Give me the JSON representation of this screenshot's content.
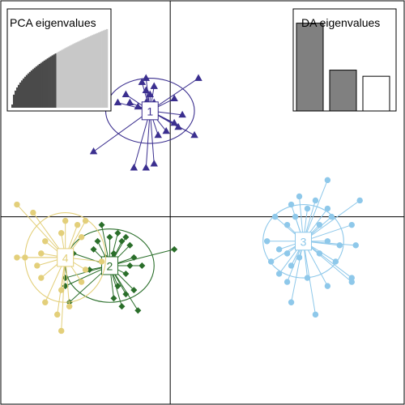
{
  "chart_data": {
    "type": "scatter",
    "plot_kind": "DAPC scatterplot",
    "axes": {
      "x_range": [
        -4.2,
        5.8
      ],
      "y_range": [
        -4.6,
        5.3
      ],
      "origin_lines": true,
      "grid": false
    },
    "groups": [
      {
        "label": "1",
        "color": "#3b2f8f",
        "marker": "triangle",
        "centroid": [
          -0.5,
          2.6
        ],
        "ellipse": {
          "rx": 1.1,
          "ry": 0.8
        },
        "points": [
          [
            -0.6,
            3.4
          ],
          [
            -1.1,
            3.0
          ],
          [
            -0.7,
            3.3
          ],
          [
            -0.6,
            3.1
          ],
          [
            -0.5,
            3.0
          ],
          [
            -0.4,
            3.2
          ],
          [
            -1.3,
            2.8
          ],
          [
            -1.0,
            2.8
          ],
          [
            -0.8,
            2.7
          ],
          [
            -0.6,
            2.8
          ],
          [
            -0.4,
            2.8
          ],
          [
            0.1,
            2.9
          ],
          [
            0.7,
            3.4
          ],
          [
            0.3,
            2.5
          ],
          [
            0.1,
            2.3
          ],
          [
            0.2,
            2.2
          ],
          [
            0.6,
            2.0
          ],
          [
            -0.1,
            2.1
          ],
          [
            -0.3,
            2.0
          ],
          [
            -1.9,
            1.6
          ],
          [
            -0.9,
            1.2
          ],
          [
            -0.6,
            1.2
          ],
          [
            -0.4,
            1.3
          ]
        ]
      },
      {
        "label": "2",
        "color": "#2a6e2a",
        "marker": "diamond",
        "centroid": [
          -1.5,
          -1.2
        ],
        "ellipse": {
          "rx": 1.1,
          "ry": 0.9
        },
        "points": [
          [
            -1.7,
            -0.2
          ],
          [
            -1.3,
            -0.4
          ],
          [
            -1.1,
            -0.5
          ],
          [
            -1.2,
            -0.6
          ],
          [
            -1.0,
            -0.7
          ],
          [
            -1.5,
            -0.5
          ],
          [
            -1.8,
            -0.6
          ],
          [
            -1.9,
            -0.8
          ],
          [
            -1.4,
            -0.9
          ],
          [
            -1.6,
            -1.0
          ],
          [
            -2.4,
            -0.9
          ],
          [
            0.1,
            -0.8
          ],
          [
            -0.9,
            -1.0
          ],
          [
            -1.0,
            -1.2
          ],
          [
            -1.1,
            -1.4
          ],
          [
            -0.7,
            -1.2
          ],
          [
            -1.3,
            -1.7
          ],
          [
            -2.0,
            -1.3
          ],
          [
            -2.6,
            -1.5
          ],
          [
            -2.6,
            -1.7
          ],
          [
            -0.9,
            -1.8
          ],
          [
            -1.1,
            -1.9
          ],
          [
            -1.4,
            -2.0
          ],
          [
            -2.5,
            -2.1
          ],
          [
            -1.2,
            -2.2
          ],
          [
            -0.8,
            -2.3
          ]
        ]
      },
      {
        "label": "3",
        "color": "#8ec8ea",
        "marker": "circle",
        "centroid": [
          3.3,
          -0.6
        ],
        "ellipse": {
          "rx": 1.0,
          "ry": 0.9
        },
        "points": [
          [
            3.9,
            0.9
          ],
          [
            4.7,
            0.4
          ],
          [
            3.0,
            0.3
          ],
          [
            3.1,
            0.0
          ],
          [
            2.6,
            0.0
          ],
          [
            3.4,
            0.2
          ],
          [
            3.6,
            0.4
          ],
          [
            3.2,
            0.5
          ],
          [
            3.9,
            0.2
          ],
          [
            4.0,
            0.0
          ],
          [
            3.7,
            -0.2
          ],
          [
            2.9,
            -0.2
          ],
          [
            2.4,
            -0.6
          ],
          [
            4.5,
            -0.2
          ],
          [
            3.9,
            -0.6
          ],
          [
            4.2,
            -0.7
          ],
          [
            2.7,
            -0.8
          ],
          [
            4.6,
            -0.7
          ],
          [
            2.9,
            -0.9
          ],
          [
            3.7,
            -0.9
          ],
          [
            2.5,
            -1.1
          ],
          [
            3.0,
            -1.2
          ],
          [
            3.2,
            -1.0
          ],
          [
            4.1,
            -1.1
          ],
          [
            2.7,
            -1.4
          ],
          [
            2.9,
            -1.6
          ],
          [
            4.5,
            -1.5
          ],
          [
            4.5,
            -1.6
          ],
          [
            3.4,
            -1.5
          ],
          [
            3.9,
            -1.7
          ],
          [
            3.0,
            -2.1
          ],
          [
            3.6,
            -2.4
          ]
        ]
      },
      {
        "label": "4",
        "color": "#e3cf7a",
        "marker": "circle",
        "centroid": [
          -2.6,
          -1.0
        ],
        "ellipse": {
          "rx": 1.0,
          "ry": 1.1
        },
        "points": [
          [
            -3.8,
            0.3
          ],
          [
            -3.4,
            0.1
          ],
          [
            -2.6,
            -0.1
          ],
          [
            -2.3,
            -0.2
          ],
          [
            -2.1,
            -0.1
          ],
          [
            -2.7,
            -0.4
          ],
          [
            -2.2,
            -0.5
          ],
          [
            -3.1,
            -0.6
          ],
          [
            -3.2,
            -0.9
          ],
          [
            -3.6,
            -1.0
          ],
          [
            -3.8,
            -1.0
          ],
          [
            -3.3,
            -1.2
          ],
          [
            -2.1,
            -1.3
          ],
          [
            -1.7,
            -1.1
          ],
          [
            -3.2,
            -1.5
          ],
          [
            -2.7,
            -1.8
          ],
          [
            -2.2,
            -1.6
          ],
          [
            -3.1,
            -2.1
          ],
          [
            -2.8,
            -2.4
          ],
          [
            -2.5,
            -2.2
          ],
          [
            -2.7,
            -2.8
          ]
        ]
      }
    ],
    "insets": [
      {
        "title": "PCA eigenvalues",
        "type": "bar",
        "position": "top-left",
        "bars": 60,
        "retained": 28,
        "colors": {
          "retained": "#4a4a4a",
          "not_retained": "#c8c8c8"
        }
      },
      {
        "title": "DA eigenvalues",
        "type": "bar",
        "position": "top-right",
        "values": [
          0.86,
          0.4,
          0.34
        ],
        "colors": {
          "retained": "#808080",
          "not_retained": "#ffffff"
        },
        "retained": 2
      }
    ]
  }
}
